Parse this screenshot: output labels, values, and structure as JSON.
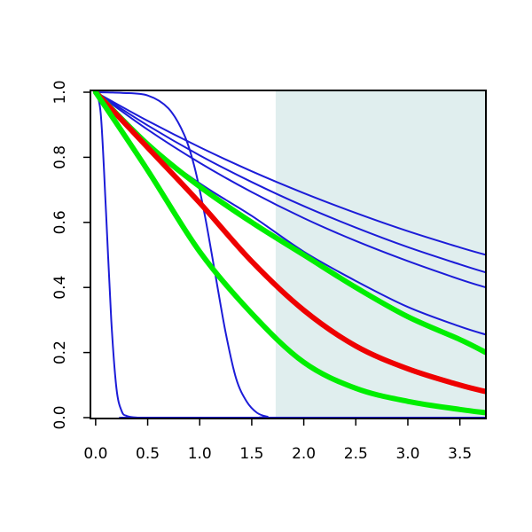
{
  "chart_data": {
    "type": "line",
    "title": "",
    "xlabel": "",
    "ylabel": "",
    "xlim": [
      -0.05,
      3.75
    ],
    "ylim": [
      0.0,
      1.0
    ],
    "x_ticks": [
      0.0,
      0.5,
      1.0,
      1.5,
      2.0,
      2.5,
      3.0,
      3.5
    ],
    "x_tick_labels": [
      "0.0",
      "0.5",
      "1.0",
      "1.5",
      "2.0",
      "2.5",
      "3.0",
      "3.5"
    ],
    "y_ticks": [
      0.0,
      0.2,
      0.4,
      0.6,
      0.8,
      1.0
    ],
    "y_tick_labels": [
      "0.0",
      "0.2",
      "0.4",
      "0.6",
      "0.8",
      "1.0"
    ],
    "grid": false,
    "shaded_region": {
      "x": [
        1.73,
        3.75
      ],
      "color": "#e0eeee"
    },
    "series": [
      {
        "color": "#1c1cd8",
        "weight": "thin",
        "x": [
          0,
          0.05,
          0.1,
          0.15,
          0.2,
          0.25,
          0.3,
          0.4,
          0.5,
          3.75
        ],
        "y": [
          1.0,
          0.93,
          0.63,
          0.3,
          0.09,
          0.02,
          0.005,
          0.0,
          0.0,
          0.0
        ]
      },
      {
        "color": "#1c1cd8",
        "weight": "thin",
        "x": [
          0,
          0.25,
          0.5,
          0.7,
          0.85,
          0.95,
          1.05,
          1.15,
          1.25,
          1.35,
          1.45,
          1.55,
          1.65,
          1.75,
          3.75
        ],
        "y": [
          1.0,
          0.998,
          0.99,
          0.95,
          0.87,
          0.77,
          0.62,
          0.44,
          0.26,
          0.12,
          0.05,
          0.015,
          0.003,
          0.0,
          0.0
        ]
      },
      {
        "color": "#1c1cd8",
        "weight": "thin",
        "x": [
          0,
          0.5,
          1.0,
          1.5,
          2.0,
          2.5,
          3.0,
          3.5,
          3.75
        ],
        "y": [
          1.0,
          0.912,
          0.831,
          0.757,
          0.69,
          0.629,
          0.573,
          0.523,
          0.5
        ]
      },
      {
        "color": "#1c1cd8",
        "weight": "thin",
        "x": [
          0,
          0.5,
          1.0,
          1.5,
          2.0,
          2.5,
          3.0,
          3.5,
          3.75
        ],
        "y": [
          1.0,
          0.898,
          0.806,
          0.724,
          0.65,
          0.584,
          0.524,
          0.471,
          0.446
        ]
      },
      {
        "color": "#1c1cd8",
        "weight": "thin",
        "x": [
          0,
          0.5,
          1.0,
          1.5,
          2.0,
          2.5,
          3.0,
          3.5,
          3.75
        ],
        "y": [
          1.0,
          0.885,
          0.783,
          0.693,
          0.613,
          0.543,
          0.481,
          0.425,
          0.4
        ]
      },
      {
        "color": "#1c1cd8",
        "weight": "thin",
        "x": [
          0,
          0.5,
          1.0,
          1.5,
          2.0,
          2.5,
          3.0,
          3.5,
          3.75
        ],
        "y": [
          1.0,
          0.84,
          0.72,
          0.62,
          0.51,
          0.42,
          0.34,
          0.28,
          0.255
        ]
      },
      {
        "color": "#00ee00",
        "weight": "thick",
        "x": [
          0,
          0.5,
          1.0,
          1.5,
          2.0,
          2.5,
          3.0,
          3.5,
          3.75
        ],
        "y": [
          1.0,
          0.84,
          0.71,
          0.6,
          0.5,
          0.4,
          0.31,
          0.24,
          0.2
        ]
      },
      {
        "color": "#ee0000",
        "weight": "thick",
        "x": [
          0,
          0.5,
          1.0,
          1.5,
          2.0,
          2.5,
          3.0,
          3.5,
          3.75
        ],
        "y": [
          1.0,
          0.83,
          0.66,
          0.48,
          0.33,
          0.22,
          0.15,
          0.1,
          0.08
        ]
      },
      {
        "color": "#00ee00",
        "weight": "thick",
        "x": [
          0,
          0.5,
          1.0,
          1.5,
          2.0,
          2.5,
          3.0,
          3.5,
          3.75
        ],
        "y": [
          1.0,
          0.76,
          0.51,
          0.32,
          0.17,
          0.09,
          0.05,
          0.025,
          0.015
        ]
      }
    ]
  }
}
